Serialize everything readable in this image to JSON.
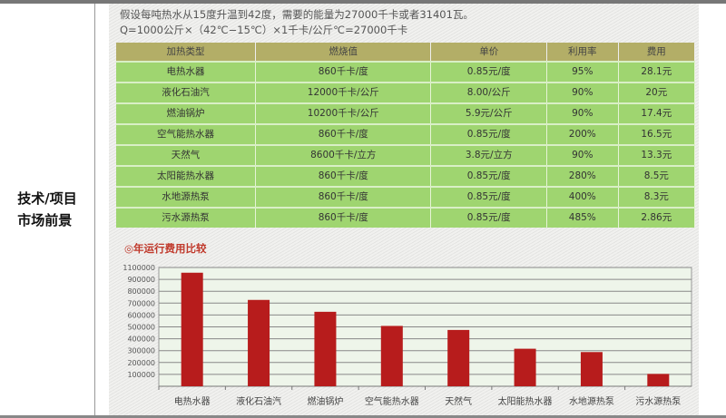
{
  "side_label": [
    "技术/项目",
    "市场前景"
  ],
  "intro": [
    "假设每吨热水从15度升温到42度，需要的能量为27000千卡或者31401瓦。",
    "Q=1000公斤×（42℃−15℃）×1千卡/公斤℃=27000千卡"
  ],
  "table": {
    "headers": [
      "加热类型",
      "燃烧值",
      "单价",
      "利用率",
      "费用"
    ],
    "rows": [
      [
        "电热水器",
        "860千卡/度",
        "0.85元/度",
        "95%",
        "28.1元"
      ],
      [
        "液化石油汽",
        "12000千卡/公斤",
        "8.00/公斤",
        "90%",
        "20元"
      ],
      [
        "燃油锅炉",
        "10200千卡/公斤",
        "5.9元/公斤",
        "90%",
        "17.4元"
      ],
      [
        "空气能热水器",
        "860千卡/度",
        "0.85元/度",
        "200%",
        "16.5元"
      ],
      [
        "天然气",
        "8600千卡/立方",
        "3.8元/立方",
        "90%",
        "13.3元"
      ],
      [
        "太阳能热水器",
        "860千卡/度",
        "0.85元/度",
        "280%",
        "8.5元"
      ],
      [
        "水地源热泵",
        "860千卡/度",
        "0.85元/度",
        "400%",
        "8.3元"
      ],
      [
        "污水源热泵",
        "860千卡/度",
        "0.85元/度",
        "485%",
        "2.86元"
      ]
    ]
  },
  "chart_data": {
    "type": "bar",
    "title": "◎年运行费用比较",
    "categories": [
      "电热水器",
      "液化石油汽",
      "燃油锅炉",
      "空气能热水器",
      "天然气",
      "太阳能热水器",
      "水地源热泵",
      "污水源热泵"
    ],
    "values": [
      956000,
      727000,
      627000,
      508000,
      474000,
      316000,
      288000,
      104000
    ],
    "ytick_labels": [
      "1100000",
      "900000",
      "800000",
      "700000",
      "600000",
      "500000",
      "400000",
      "300000",
      "200000",
      "100000"
    ],
    "ylim": [
      0,
      1000000
    ],
    "grid": true,
    "bar_color": "#b71c1c"
  }
}
